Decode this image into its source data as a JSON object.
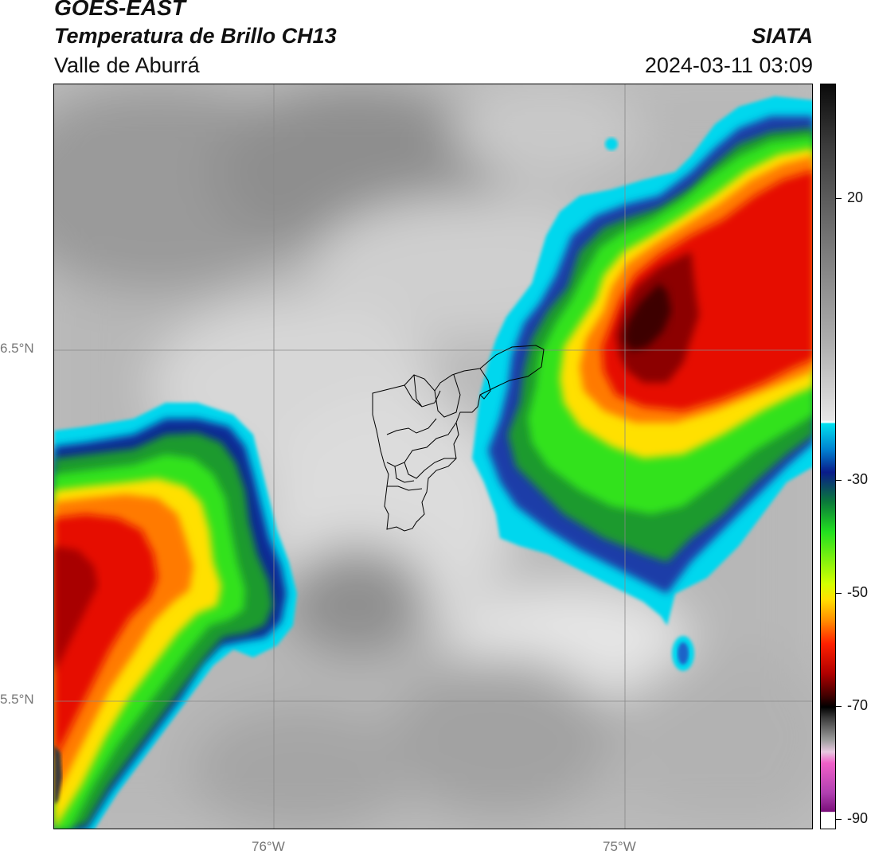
{
  "header": {
    "title": "GOES-EAST",
    "subtitle": "Temperatura de Brillo CH13",
    "region": "Valle de Aburrá",
    "organization": "SIATA",
    "timestamp": "2024-03-11 03:09"
  },
  "map": {
    "lat_labels": [
      "6.5°N",
      "5.5°N"
    ],
    "lon_labels": [
      "76°W",
      "75°W"
    ],
    "gridlines": true
  },
  "colorbar": {
    "ticks": [
      "20",
      "-30",
      "-50",
      "-70",
      "-90"
    ],
    "min": -90,
    "max": 40
  }
}
